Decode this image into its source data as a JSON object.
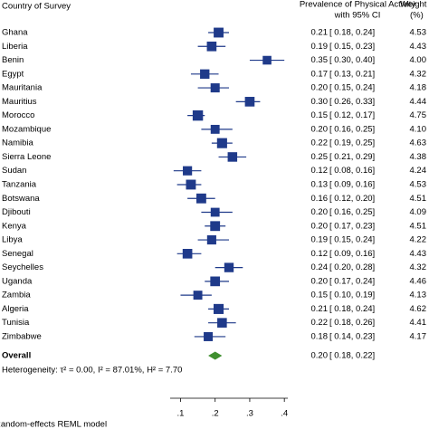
{
  "chart_data": {
    "type": "forest",
    "header": {
      "study": "Country of Survey",
      "effect_line1": "Prevalence of Physical Activity",
      "effect_line2": "with 95% CI",
      "weight_line1": "Weight",
      "weight_line2": "(%)"
    },
    "categories": [
      "Ghana",
      "Liberia",
      "Benin",
      "Egypt",
      "Mauritania",
      "Mauritius",
      "Morocco",
      "Mozambique",
      "Namibia",
      "Sierra Leone",
      "Sudan",
      "Tanzania",
      "Botswana",
      "Djibouti",
      "Kenya",
      "Libya",
      "Senegal",
      "Seychelles",
      "Uganda",
      "Zambia",
      "Algeria",
      "Tunisia",
      "Zimbabwe"
    ],
    "values": [
      0.21,
      0.19,
      0.35,
      0.17,
      0.2,
      0.3,
      0.15,
      0.2,
      0.22,
      0.25,
      0.12,
      0.13,
      0.16,
      0.2,
      0.2,
      0.19,
      0.12,
      0.24,
      0.2,
      0.15,
      0.21,
      0.22,
      0.18
    ],
    "value_labels": [
      "0.21",
      "0.19",
      "0.35",
      "0.17",
      "0.20",
      "0.30",
      "0.15",
      "0.20",
      "0.22",
      "0.25",
      "0.12",
      "0.13",
      "0.16",
      "0.20",
      "0.20",
      "0.19",
      "0.12",
      "0.24",
      "0.20",
      "0.15",
      "0.21",
      "0.22",
      "0.18"
    ],
    "ci_low": [
      0.18,
      0.15,
      0.3,
      0.13,
      0.15,
      0.26,
      0.12,
      0.16,
      0.19,
      0.21,
      0.08,
      0.09,
      0.12,
      0.16,
      0.17,
      0.15,
      0.09,
      0.2,
      0.17,
      0.1,
      0.18,
      0.18,
      0.14
    ],
    "ci_high": [
      0.24,
      0.23,
      0.4,
      0.21,
      0.24,
      0.33,
      0.17,
      0.25,
      0.25,
      0.29,
      0.16,
      0.16,
      0.2,
      0.25,
      0.23,
      0.24,
      0.16,
      0.28,
      0.24,
      0.19,
      0.24,
      0.26,
      0.23
    ],
    "ci_labels": [
      "[ 0.18, 0.24]",
      "[ 0.15, 0.23]",
      "[ 0.30, 0.40]",
      "[ 0.13, 0.21]",
      "[ 0.15, 0.24]",
      "[ 0.26, 0.33]",
      "[ 0.12, 0.17]",
      "[ 0.16, 0.25]",
      "[ 0.19, 0.25]",
      "[ 0.21, 0.29]",
      "[ 0.08, 0.16]",
      "[ 0.09, 0.16]",
      "[ 0.12, 0.20]",
      "[ 0.16, 0.25]",
      "[ 0.17, 0.23]",
      "[ 0.15, 0.24]",
      "[ 0.09, 0.16]",
      "[ 0.20, 0.28]",
      "[ 0.17, 0.24]",
      "[ 0.10, 0.19]",
      "[ 0.18, 0.24]",
      "[ 0.18, 0.26]",
      "[ 0.14, 0.23]"
    ],
    "weights": [
      4.53,
      4.43,
      4,
      4.32,
      4.18,
      4.44,
      4.75,
      4.1,
      4.63,
      4.38,
      4.24,
      4.53,
      4.51,
      4.09,
      4.51,
      4.22,
      4.43,
      4.32,
      4.46,
      4.13,
      4.62,
      4.41,
      4.17
    ],
    "weight_labels": [
      "4.53",
      "4.43",
      "4.00",
      "4.32",
      "4.18",
      "4.44",
      "4.75",
      "4.10",
      "4.63",
      "4.38",
      "4.24",
      "4.53",
      "4.51",
      "4.09",
      "4.51",
      "4.22",
      "4.43",
      "4.32",
      "4.46",
      "4.13",
      "4.62",
      "4.41",
      "4.17"
    ],
    "overall": {
      "label": "Overall",
      "value": 0.2,
      "value_label": "0.20",
      "ci_low": 0.18,
      "ci_high": 0.22,
      "ci_label": "[ 0.18, 0.22]"
    },
    "heterogeneity": "Heterogeneity: τ² = 0.00, I² = 87.01%, H² = 7.70",
    "footnote": "Random-effects REML model",
    "xlim": [
      0.07,
      0.41
    ],
    "xticks": [
      {
        "value": 0.1,
        "label": ".1"
      },
      {
        "value": 0.2,
        "label": ".2"
      },
      {
        "value": 0.3,
        "label": ".3"
      },
      {
        "value": 0.4,
        "label": ".4"
      }
    ],
    "color": "#1f3a8a",
    "overall_color": "#3f8f2f"
  }
}
